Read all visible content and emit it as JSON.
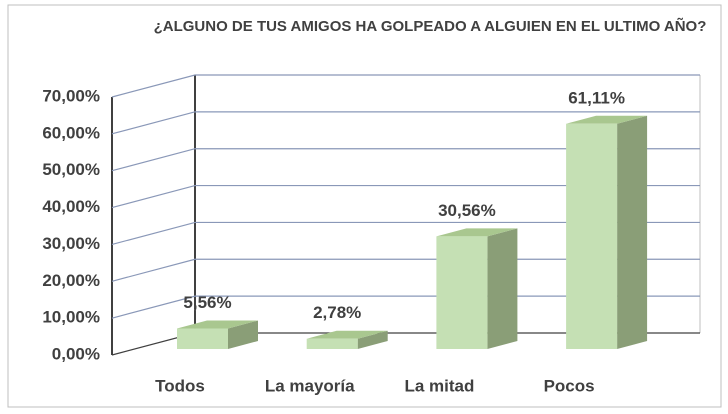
{
  "chart_data": {
    "type": "bar3d",
    "title": "¿ALGUNO DE TUS AMIGOS HA GOLPEADO A ALGUIEN EN EL ULTIMO AÑO?",
    "categories": [
      "Todos",
      "La mayoría",
      "La mitad",
      "Pocos"
    ],
    "values": [
      5.56,
      2.78,
      30.56,
      61.11
    ],
    "value_labels": [
      "5,56%",
      "2,78%",
      "30,56%",
      "61,11%"
    ],
    "color": "#c5e0b4",
    "ylim": [
      0,
      70
    ],
    "yticks": [
      {
        "value": 0,
        "label": "0,00%"
      },
      {
        "value": 10,
        "label": "10,00%"
      },
      {
        "value": 20,
        "label": "20,00%"
      },
      {
        "value": 30,
        "label": "30,00%"
      },
      {
        "value": 40,
        "label": "40,00%"
      },
      {
        "value": 50,
        "label": "50,00%"
      },
      {
        "value": 60,
        "label": "60,00%"
      },
      {
        "value": 70,
        "label": "70,00%"
      }
    ],
    "grid": true
  }
}
